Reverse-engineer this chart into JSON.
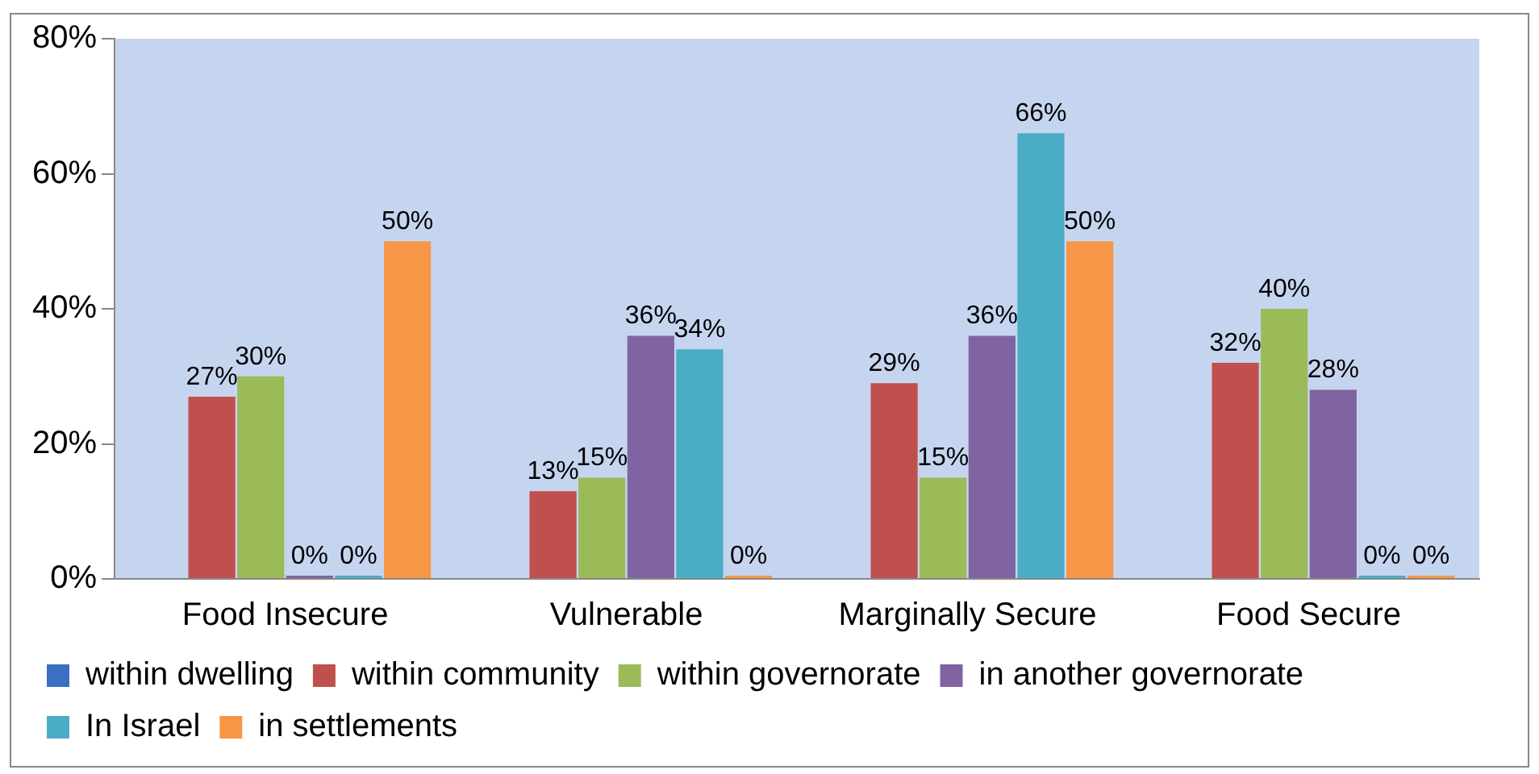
{
  "chart_data": {
    "type": "bar",
    "categories": [
      "Food Insecure",
      "Vulnerable",
      "Marginally Secure",
      "Food Secure"
    ],
    "series": [
      {
        "name": "within dwelling",
        "color": "#3a6fc4",
        "values": [
          null,
          null,
          null,
          null
        ],
        "value_labels": [
          null,
          null,
          null,
          null
        ]
      },
      {
        "name": "within community",
        "color": "#c0504d",
        "values": [
          27,
          13,
          29,
          32
        ],
        "value_labels": [
          "27%",
          "13%",
          "29%",
          "32%"
        ]
      },
      {
        "name": "within governorate",
        "color": "#9bbb59",
        "values": [
          30,
          15,
          15,
          40
        ],
        "value_labels": [
          "30%",
          "15%",
          "15%",
          "40%"
        ]
      },
      {
        "name": "in another governorate",
        "color": "#8064a2",
        "values": [
          0,
          36,
          36,
          28
        ],
        "value_labels": [
          "0%",
          "36%",
          "36%",
          "28%"
        ]
      },
      {
        "name": "In Israel",
        "color": "#4bacc6",
        "values": [
          0,
          34,
          66,
          0
        ],
        "value_labels": [
          "0%",
          "34%",
          "66%",
          "0%"
        ]
      },
      {
        "name": "in settlements",
        "color": "#f79646",
        "values": [
          50,
          0,
          50,
          0
        ],
        "value_labels": [
          "50%",
          "0%",
          "50%",
          "0%"
        ]
      }
    ],
    "ylim": [
      0,
      80
    ],
    "yticks": [
      {
        "value": 0,
        "label": "0%"
      },
      {
        "value": 20,
        "label": "20%"
      },
      {
        "value": 40,
        "label": "40%"
      },
      {
        "value": 60,
        "label": "60%"
      },
      {
        "value": 80,
        "label": "80%"
      }
    ],
    "grid": false,
    "legend": "bottom"
  }
}
